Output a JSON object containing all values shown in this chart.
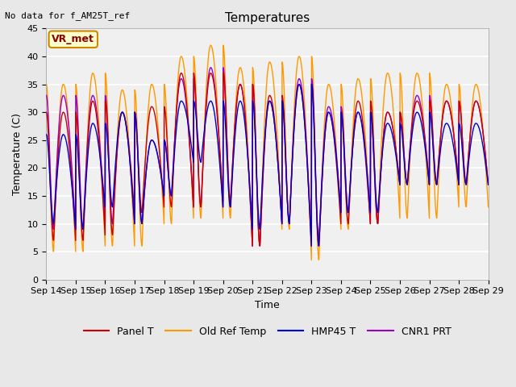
{
  "title": "Temperatures",
  "xlabel": "Time",
  "ylabel": "Temperature (C)",
  "ylim": [
    0,
    45
  ],
  "annotation_text": "No data for f_AM25T_ref",
  "legend_entries": [
    "Panel T",
    "Old Ref Temp",
    "HMP45 T",
    "CNR1 PRT"
  ],
  "legend_colors": [
    "#cc0000",
    "#ff9900",
    "#0000cc",
    "#9900cc"
  ],
  "vr_met_label": "VR_met",
  "vr_met_bg": "#ffffcc",
  "vr_met_edge": "#cc8800",
  "vr_met_text": "#8B0000",
  "background_color": "#e8e8e8",
  "axes_bg_color": "#f0f0f0",
  "tick_label_dates": [
    "Sep 14",
    "Sep 15",
    "Sep 16",
    "Sep 17",
    "Sep 18",
    "Sep 19",
    "Sep 20",
    "Sep 21",
    "Sep 22",
    "Sep 23",
    "Sep 24",
    "Sep 25",
    "Sep 26",
    "Sep 27",
    "Sep 28",
    "Sep 29"
  ],
  "title_fontsize": 11,
  "axes_label_fontsize": 9,
  "tick_fontsize": 8,
  "legend_fontsize": 9
}
